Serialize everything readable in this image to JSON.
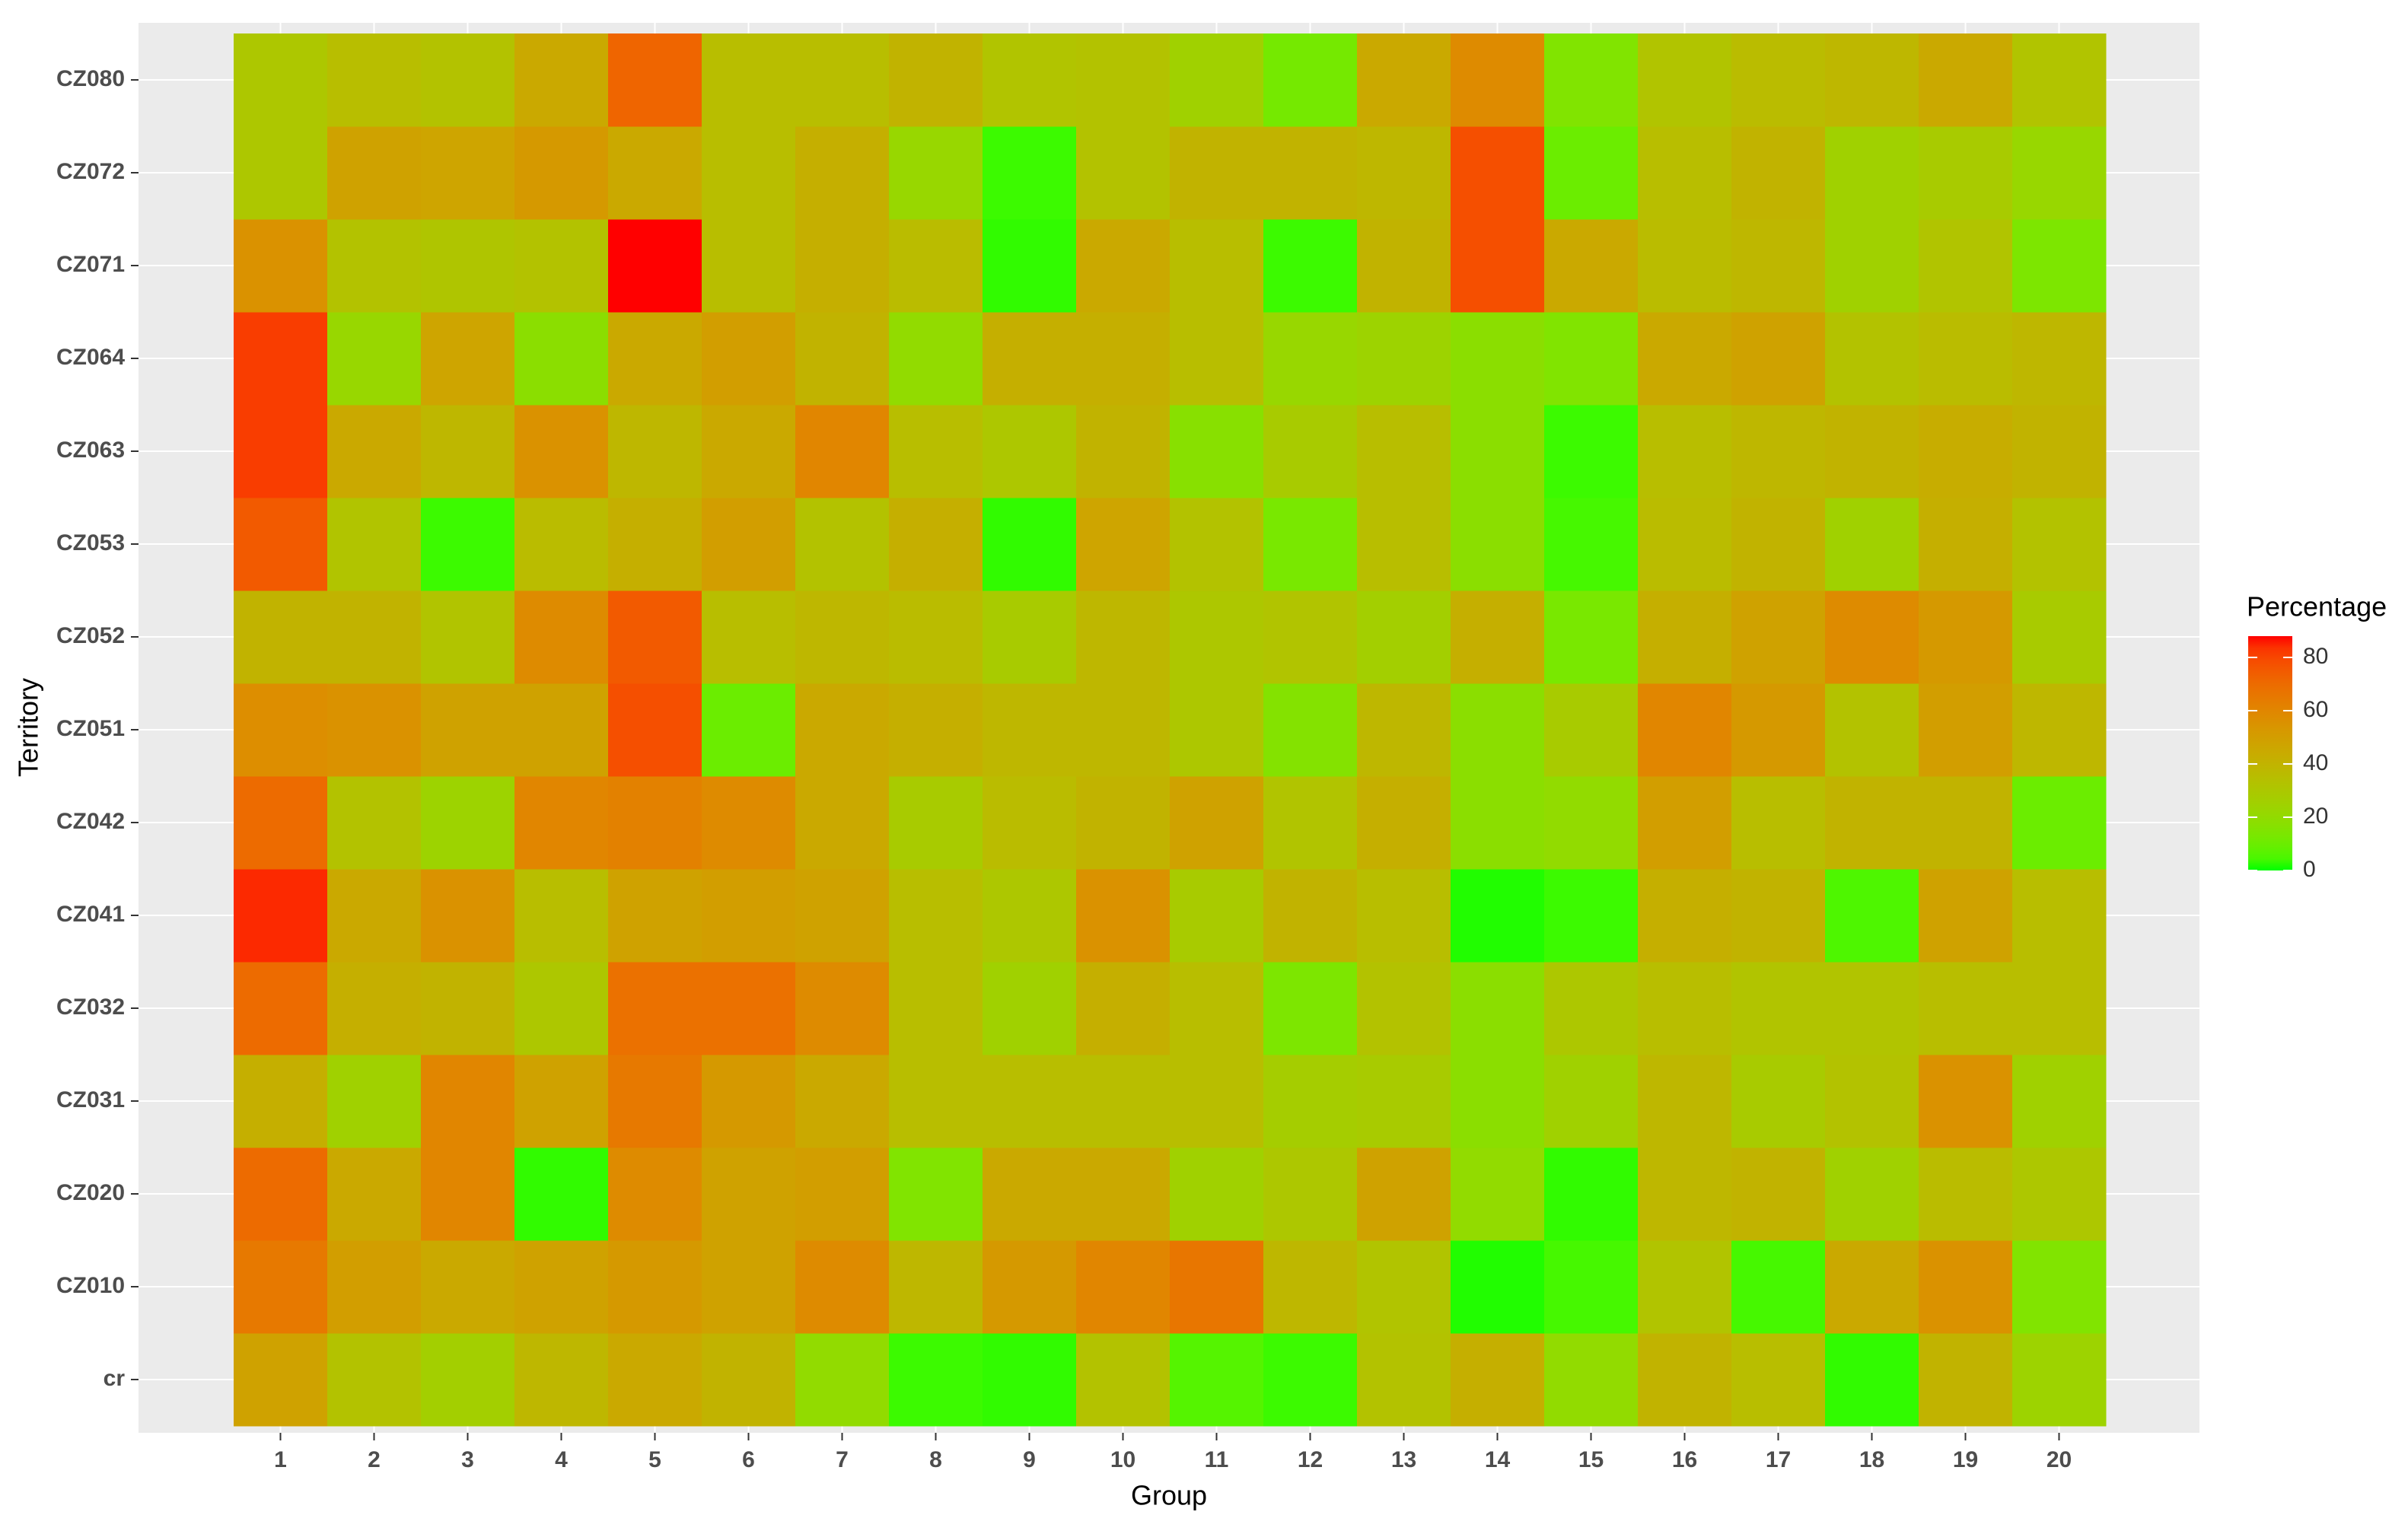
{
  "chart_data": {
    "type": "heatmap",
    "x_label": "Group",
    "y_label": "Territory",
    "xcategories": [
      "1",
      "2",
      "3",
      "4",
      "5",
      "6",
      "7",
      "8",
      "9",
      "10",
      "11",
      "12",
      "13",
      "14",
      "15",
      "16",
      "17",
      "18",
      "19",
      "20"
    ],
    "ycategories": [
      "cr",
      "CZ010",
      "CZ020",
      "CZ031",
      "CZ032",
      "CZ041",
      "CZ042",
      "CZ051",
      "CZ052",
      "CZ053",
      "CZ063",
      "CZ064",
      "CZ071",
      "CZ072",
      "CZ080"
    ],
    "values": [
      [
        48,
        33,
        26,
        38,
        45,
        40,
        20,
        3,
        2,
        33,
        6,
        3,
        33,
        42,
        20,
        40,
        35,
        2,
        40,
        24
      ],
      [
        65,
        50,
        45,
        48,
        52,
        48,
        58,
        38,
        52,
        60,
        66,
        38,
        32,
        1,
        4,
        32,
        4,
        45,
        55,
        15
      ],
      [
        70,
        45,
        60,
        2,
        58,
        48,
        50,
        15,
        45,
        45,
        25,
        30,
        48,
        20,
        2,
        38,
        40,
        25,
        36,
        30
      ],
      [
        42,
        25,
        60,
        48,
        65,
        52,
        45,
        35,
        35,
        35,
        35,
        27,
        28,
        18,
        25,
        38,
        28,
        33,
        55,
        25
      ],
      [
        70,
        42,
        40,
        30,
        68,
        68,
        58,
        35,
        25,
        42,
        35,
        14,
        33,
        18,
        30,
        35,
        32,
        32,
        35,
        35
      ],
      [
        85,
        45,
        55,
        35,
        48,
        50,
        48,
        35,
        30,
        55,
        28,
        40,
        35,
        1,
        3,
        42,
        40,
        5,
        48,
        35
      ],
      [
        70,
        33,
        24,
        60,
        62,
        58,
        45,
        28,
        36,
        40,
        48,
        32,
        42,
        18,
        20,
        50,
        35,
        40,
        40,
        10
      ],
      [
        57,
        55,
        48,
        48,
        78,
        10,
        45,
        42,
        38,
        38,
        30,
        16,
        38,
        18,
        28,
        60,
        52,
        33,
        50,
        38
      ],
      [
        40,
        40,
        32,
        58,
        75,
        35,
        38,
        36,
        28,
        38,
        30,
        32,
        26,
        42,
        13,
        42,
        48,
        58,
        52,
        28
      ],
      [
        75,
        32,
        3,
        36,
        42,
        50,
        33,
        42,
        2,
        47,
        33,
        13,
        35,
        18,
        4,
        36,
        40,
        25,
        42,
        33
      ],
      [
        82,
        45,
        38,
        55,
        38,
        45,
        60,
        35,
        30,
        40,
        17,
        28,
        35,
        18,
        3,
        35,
        38,
        40,
        43,
        40
      ],
      [
        82,
        22,
        47,
        18,
        45,
        50,
        40,
        20,
        42,
        42,
        35,
        22,
        24,
        18,
        15,
        45,
        48,
        33,
        36,
        38
      ],
      [
        55,
        33,
        31,
        33,
        88,
        35,
        42,
        36,
        2,
        45,
        35,
        3,
        40,
        78,
        45,
        36,
        38,
        25,
        32,
        14
      ],
      [
        30,
        48,
        47,
        52,
        45,
        35,
        42,
        22,
        3,
        33,
        40,
        40,
        38,
        78,
        10,
        35,
        40,
        25,
        28,
        22
      ],
      [
        30,
        35,
        33,
        45,
        72,
        35,
        35,
        40,
        32,
        33,
        25,
        12,
        45,
        58,
        15,
        32,
        36,
        38,
        45,
        32
      ]
    ],
    "legend_title": "Percentage",
    "low_color": "#00ff00",
    "high_color": "#ff0000",
    "zlim": [
      0,
      88
    ],
    "zticks": [
      0,
      20,
      40,
      60,
      80
    ],
    "grid": true
  }
}
